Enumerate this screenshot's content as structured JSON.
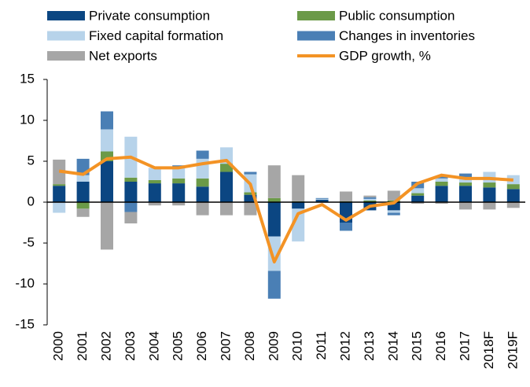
{
  "chart_data": {
    "type": "bar",
    "stacked": true,
    "categories": [
      "2000",
      "2001",
      "2002",
      "2003",
      "2004",
      "2005",
      "2006",
      "2007",
      "2008",
      "2009",
      "2010",
      "2011",
      "2012",
      "2013",
      "2014",
      "2015",
      "2016",
      "2017",
      "2018F",
      "2019F"
    ],
    "ylim": [
      -15,
      15
    ],
    "yticks": [
      -15,
      -10,
      -5,
      0,
      5,
      10,
      15
    ],
    "grid": false,
    "series": [
      {
        "name": "Private consumption",
        "color": "#0b4682",
        "values": [
          2.0,
          2.5,
          5.0,
          2.5,
          2.3,
          2.3,
          1.9,
          3.7,
          0.9,
          -4.2,
          -0.8,
          0.3,
          -2.5,
          -1.0,
          -1.0,
          0.8,
          2.0,
          2.0,
          1.8,
          1.6
        ]
      },
      {
        "name": "Public consumption",
        "color": "#6b9a48",
        "values": [
          0.2,
          -0.8,
          1.2,
          0.5,
          0.4,
          0.6,
          1.0,
          1.0,
          0.3,
          0.5,
          0.1,
          0.0,
          0.1,
          0.2,
          0.2,
          0.3,
          0.5,
          0.4,
          0.6,
          0.6
        ]
      },
      {
        "name": "Fixed capital formation",
        "color": "#b7d3ea",
        "values": [
          -1.3,
          0.8,
          2.7,
          5.0,
          1.5,
          1.3,
          2.4,
          2.0,
          2.2,
          -4.2,
          -4.0,
          0.1,
          0.0,
          0.2,
          -0.3,
          0.6,
          0.4,
          0.6,
          1.3,
          1.1
        ]
      },
      {
        "name": "Changes in inventories",
        "color": "#4a7fb5",
        "values": [
          0.0,
          2.0,
          2.2,
          -1.2,
          0.0,
          0.3,
          1.0,
          0.0,
          0.3,
          -3.4,
          0.0,
          0.1,
          -1.0,
          0.2,
          -0.3,
          0.8,
          0.3,
          0.5,
          0.0,
          0.0
        ]
      },
      {
        "name": "Net exports",
        "color": "#a6a6a6",
        "values": [
          3.0,
          -1.0,
          -5.8,
          -1.4,
          -0.4,
          -0.4,
          -1.6,
          -1.6,
          -1.6,
          4.0,
          3.2,
          0.0,
          1.2,
          0.2,
          1.2,
          -0.2,
          -0.2,
          -0.9,
          -0.9,
          -0.7
        ]
      },
      {
        "name": "GDP growth, %",
        "type": "line",
        "color": "#f39325",
        "values": [
          3.8,
          3.4,
          5.3,
          5.5,
          4.2,
          4.2,
          4.7,
          5.1,
          2.2,
          -7.3,
          -1.4,
          -0.3,
          -2.2,
          -0.5,
          -0.1,
          2.3,
          3.3,
          2.9,
          2.9,
          2.7
        ]
      }
    ]
  }
}
